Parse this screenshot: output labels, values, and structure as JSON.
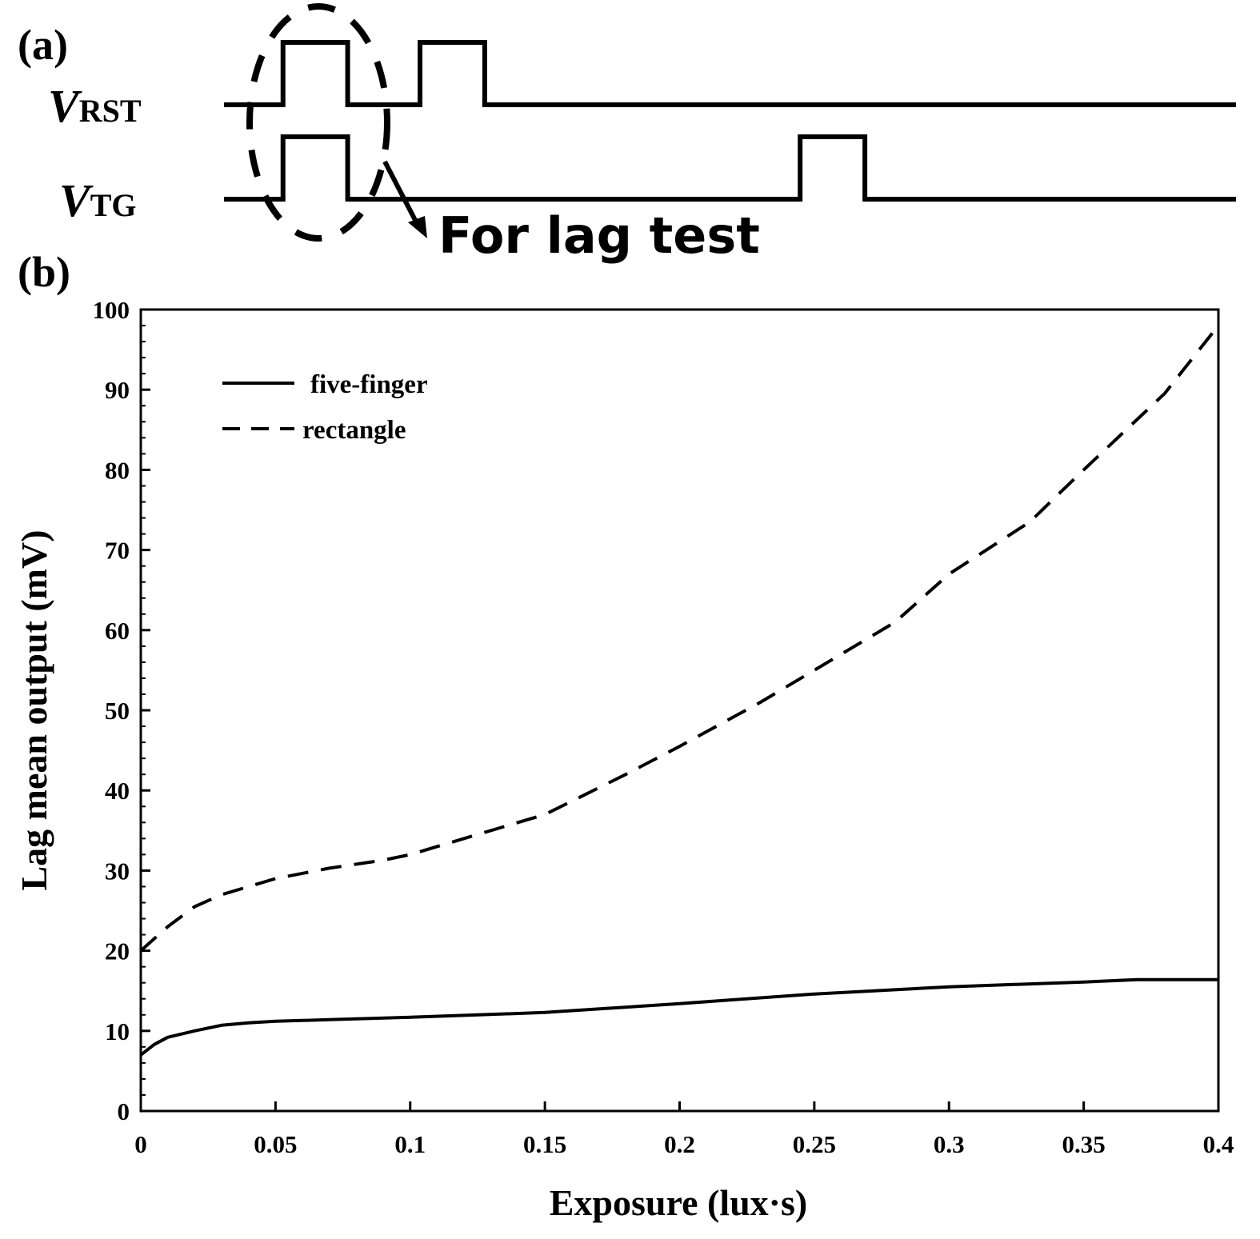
{
  "panel_a": {
    "label": "(a)",
    "signals": [
      {
        "name": "V",
        "subscript": "RST",
        "pulses": [
          [
            0.0583,
            0.1222
          ],
          [
            0.1937,
            0.2576
          ]
        ]
      },
      {
        "name": "V",
        "subscript": "TG",
        "pulses": [
          [
            0.0583,
            0.1222
          ],
          [
            0.5693,
            0.6333
          ]
        ]
      }
    ],
    "annotation": "For lag test"
  },
  "panel_b_label": "(b)",
  "chart_data": {
    "type": "line",
    "xlabel": "Exposure (lux·s)",
    "ylabel": "Lag mean output (mV)",
    "xlim": [
      0,
      0.4
    ],
    "ylim": [
      0,
      100
    ],
    "xticks": [
      0,
      0.05,
      0.1,
      0.15,
      0.2,
      0.25,
      0.3,
      0.35,
      0.4
    ],
    "xtick_labels": [
      "0",
      "0.05",
      "0.1",
      "0.15",
      "0.2",
      "0.25",
      "0.3",
      "0.35",
      "0.4"
    ],
    "yticks": [
      0,
      10,
      20,
      30,
      40,
      50,
      60,
      70,
      80,
      90,
      100
    ],
    "ytick_labels": [
      "0",
      "10",
      "20",
      "30",
      "40",
      "50",
      "60",
      "70",
      "80",
      "90",
      "100"
    ],
    "grid": false,
    "legend_position": "top-left",
    "series": [
      {
        "name": "five-finger",
        "style": "solid",
        "color": "#000000",
        "x": [
          0,
          0.005,
          0.01,
          0.02,
          0.03,
          0.04,
          0.05,
          0.07,
          0.1,
          0.15,
          0.2,
          0.25,
          0.3,
          0.35,
          0.37,
          0.4
        ],
        "y": [
          7.0,
          8.3,
          9.2,
          10.0,
          10.7,
          11.0,
          11.2,
          11.4,
          11.7,
          12.3,
          13.4,
          14.6,
          15.5,
          16.1,
          16.4,
          16.4
        ]
      },
      {
        "name": "rectangle",
        "style": "dashed",
        "color": "#000000",
        "x": [
          0,
          0.01,
          0.02,
          0.03,
          0.05,
          0.07,
          0.09,
          0.1,
          0.12,
          0.15,
          0.18,
          0.2,
          0.23,
          0.25,
          0.28,
          0.3,
          0.33,
          0.35,
          0.38,
          0.4
        ],
        "y": [
          20.0,
          23.0,
          25.5,
          27.0,
          29.0,
          30.3,
          31.3,
          32.0,
          34.0,
          37.0,
          42.0,
          45.5,
          51.0,
          55.0,
          61.0,
          67.0,
          73.5,
          80.0,
          89.5,
          98.0
        ]
      }
    ]
  }
}
